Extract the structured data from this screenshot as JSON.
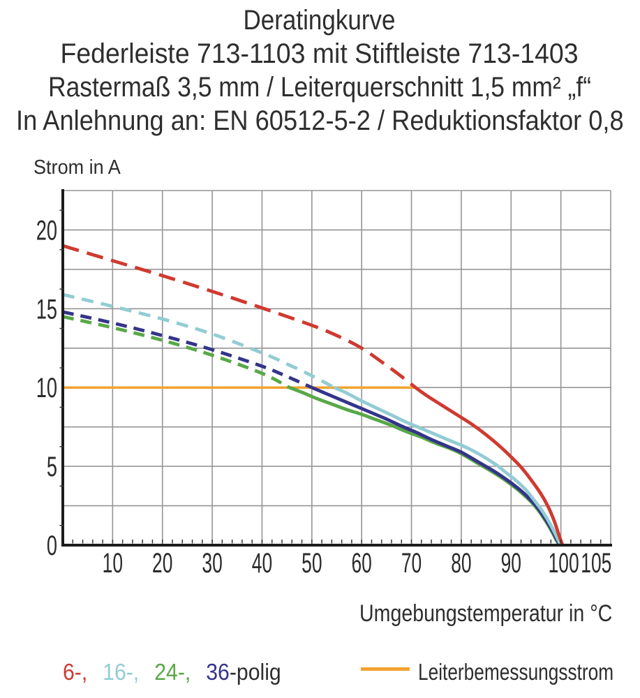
{
  "title": {
    "line1": "Deratingkurve",
    "line2": "Federleiste 713-1103 mit Stiftleiste 713-1403",
    "line3": "Rastermaß 3,5 mm / Leiterquerschnitt 1,5 mm² „f“",
    "line4": "In Anlehnung an: EN 60512-5-2 / Reduktionsfaktor 0,8"
  },
  "chart_data": {
    "type": "line",
    "xlabel": "Umgebungstemperatur in °C",
    "ylabel": "Strom in A",
    "xlim": [
      0,
      110
    ],
    "ylim": [
      0,
      22.5
    ],
    "x_ticks": [
      10,
      20,
      30,
      40,
      50,
      60,
      70,
      80,
      90,
      100,
      105
    ],
    "y_ticks": [
      0,
      5,
      10,
      15,
      20
    ],
    "x_grid_step": 10,
    "y_grid_step": 2.5,
    "grid": true,
    "grid_color": "#959595",
    "axis_color": "#1c1c1c",
    "series": [
      {
        "name": "Leiterbemessungsstrom",
        "color": "#f2a330",
        "style": "solid",
        "width": 3.5,
        "points": [
          [
            0,
            10
          ],
          [
            70.8,
            10
          ]
        ]
      },
      {
        "name": "24-polig",
        "color": "#58a847",
        "dash": "16 10",
        "points_dashed": [
          [
            0,
            14.5
          ],
          [
            10,
            13.8
          ],
          [
            20,
            13.0
          ],
          [
            30,
            12.05
          ],
          [
            40,
            10.9
          ],
          [
            45.5,
            10.0
          ]
        ],
        "points_solid": [
          [
            45.5,
            10.0
          ],
          [
            48,
            9.7
          ],
          [
            51,
            9.3
          ],
          [
            54,
            8.95
          ],
          [
            57,
            8.6
          ],
          [
            60,
            8.3
          ],
          [
            63,
            7.95
          ],
          [
            66,
            7.6
          ],
          [
            69,
            7.2
          ],
          [
            72,
            6.85
          ],
          [
            75,
            6.45
          ],
          [
            78,
            6.1
          ],
          [
            80,
            5.8
          ],
          [
            83,
            5.25
          ],
          [
            86,
            4.7
          ],
          [
            88,
            4.3
          ],
          [
            90,
            3.85
          ],
          [
            92,
            3.35
          ],
          [
            94,
            2.75
          ],
          [
            95.5,
            2.2
          ],
          [
            97,
            1.5
          ],
          [
            98.3,
            0.8
          ],
          [
            99.1,
            0.3
          ],
          [
            99.75,
            0
          ]
        ]
      },
      {
        "name": "36-polig",
        "color": "#34348a",
        "dash": "16 10",
        "points_dashed": [
          [
            0,
            14.8
          ],
          [
            10,
            14.1
          ],
          [
            20,
            13.3
          ],
          [
            30,
            12.4
          ],
          [
            40,
            11.35
          ],
          [
            45,
            10.7
          ],
          [
            50,
            10.0
          ]
        ],
        "points_solid": [
          [
            50,
            10.0
          ],
          [
            53,
            9.6
          ],
          [
            56,
            9.2
          ],
          [
            59,
            8.8
          ],
          [
            62,
            8.4
          ],
          [
            65,
            8.0
          ],
          [
            68,
            7.55
          ],
          [
            71,
            7.15
          ],
          [
            74,
            6.7
          ],
          [
            77,
            6.3
          ],
          [
            80,
            5.9
          ],
          [
            83,
            5.35
          ],
          [
            86,
            4.8
          ],
          [
            88,
            4.4
          ],
          [
            90,
            3.95
          ],
          [
            92,
            3.45
          ],
          [
            94,
            2.85
          ],
          [
            95.5,
            2.3
          ],
          [
            97,
            1.6
          ],
          [
            98.3,
            0.9
          ],
          [
            99.2,
            0.35
          ],
          [
            99.85,
            0
          ]
        ]
      },
      {
        "name": "16-polig",
        "color": "#92ccd3",
        "dash": "17 11",
        "points_dashed": [
          [
            0,
            15.9
          ],
          [
            10,
            15.15
          ],
          [
            20,
            14.35
          ],
          [
            30,
            13.4
          ],
          [
            40,
            12.2
          ],
          [
            45,
            11.5
          ],
          [
            50,
            10.75
          ],
          [
            54.5,
            10.0
          ]
        ],
        "points_solid": [
          [
            54.5,
            10.0
          ],
          [
            57,
            9.65
          ],
          [
            60,
            9.15
          ],
          [
            63,
            8.7
          ],
          [
            66,
            8.25
          ],
          [
            69,
            7.8
          ],
          [
            72,
            7.4
          ],
          [
            75,
            7.0
          ],
          [
            78,
            6.6
          ],
          [
            81,
            6.2
          ],
          [
            84,
            5.7
          ],
          [
            87,
            5.1
          ],
          [
            89,
            4.6
          ],
          [
            91,
            4.1
          ],
          [
            93,
            3.5
          ],
          [
            95,
            2.7
          ],
          [
            96.5,
            2.05
          ],
          [
            98,
            1.25
          ],
          [
            99.2,
            0.5
          ],
          [
            99.95,
            0
          ]
        ]
      },
      {
        "name": "6-polig",
        "color": "#cf3a30",
        "dash": "24 12",
        "points_dashed": [
          [
            0,
            19.0
          ],
          [
            10,
            18.05
          ],
          [
            20,
            17.1
          ],
          [
            30,
            16.1
          ],
          [
            40,
            15.05
          ],
          [
            50,
            13.95
          ],
          [
            55,
            13.3
          ],
          [
            60,
            12.5
          ],
          [
            65,
            11.4
          ],
          [
            68,
            10.7
          ],
          [
            70.8,
            10.0
          ]
        ],
        "points_solid": [
          [
            70.8,
            10.0
          ],
          [
            73,
            9.5
          ],
          [
            76,
            8.9
          ],
          [
            79,
            8.3
          ],
          [
            82,
            7.7
          ],
          [
            85,
            7.0
          ],
          [
            88,
            6.2
          ],
          [
            90,
            5.6
          ],
          [
            92,
            4.95
          ],
          [
            94,
            4.15
          ],
          [
            96,
            3.25
          ],
          [
            97.5,
            2.4
          ],
          [
            98.7,
            1.5
          ],
          [
            99.6,
            0.65
          ],
          [
            100.35,
            0
          ]
        ]
      }
    ]
  },
  "legend": {
    "items": [
      {
        "label": "6-,",
        "color": "#cf3a30"
      },
      {
        "label": "16-,",
        "color": "#92ccd3"
      },
      {
        "label": "24-,",
        "color": "#58a847"
      },
      {
        "label": "36",
        "color": "#34348a"
      },
      {
        "label": "-polig",
        "color": "#2e2e2e"
      }
    ],
    "limit_label": "Leiterbemessungsstrom",
    "limit_color": "#f2a330"
  }
}
